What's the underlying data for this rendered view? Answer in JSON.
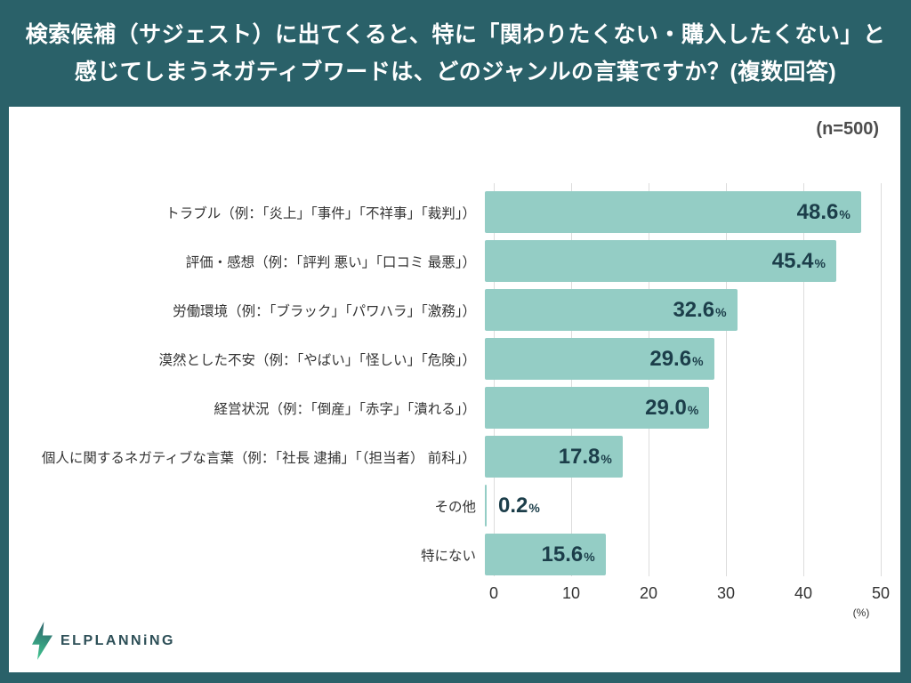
{
  "header": {
    "title_line1": "検索候補（サジェスト）に出てくると、特に「関わりたくない・購入したくない」と",
    "title_line2": "感じてしまうネガティブワードは、どのジャンルの言葉ですか？(複数回答)"
  },
  "sample_label": "(n=500)",
  "chart_data": {
    "type": "bar",
    "orientation": "horizontal",
    "title": "検索候補（サジェスト）に出てくると、特に「関わりたくない・購入したくない」と感じてしまうネガティブワードは、どのジャンルの言葉ですか？(複数回答)",
    "sample_size": "n=500",
    "categories": [
      "トラブル（例：「炎上」「事件」「不祥事」「裁判」）",
      "評価・感想（例：「評判 悪い」「口コミ 最悪」）",
      "労働環境（例：「ブラック」「パワハラ」「激務」）",
      "漠然とした不安（例：「やばい」「怪しい」「危険」）",
      "経営状況（例：「倒産」「赤字」「潰れる」）",
      "個人に関するネガティブな言葉（例：「社長 逮捕」「（担当者） 前科」）",
      "その他",
      "特にない"
    ],
    "values": [
      48.6,
      45.4,
      32.6,
      29.6,
      29.0,
      17.8,
      0.2,
      15.6
    ],
    "display_values": [
      "48.6",
      "45.4",
      "32.6",
      "29.6",
      "29.0",
      "17.8",
      "0.2",
      "15.6"
    ],
    "value_suffix": "%",
    "xlim": [
      0,
      50
    ],
    "x_ticks": [
      0,
      10,
      20,
      30,
      40,
      50
    ],
    "x_unit_label": "(%)",
    "grid": true,
    "legend": "none",
    "bar_color": "#94cdc5",
    "value_text_color": "#1c3e4a",
    "background_color": "#2a6169",
    "card_color": "#ffffff"
  },
  "footer": {
    "logo_text": "ELPLANNiNG"
  }
}
